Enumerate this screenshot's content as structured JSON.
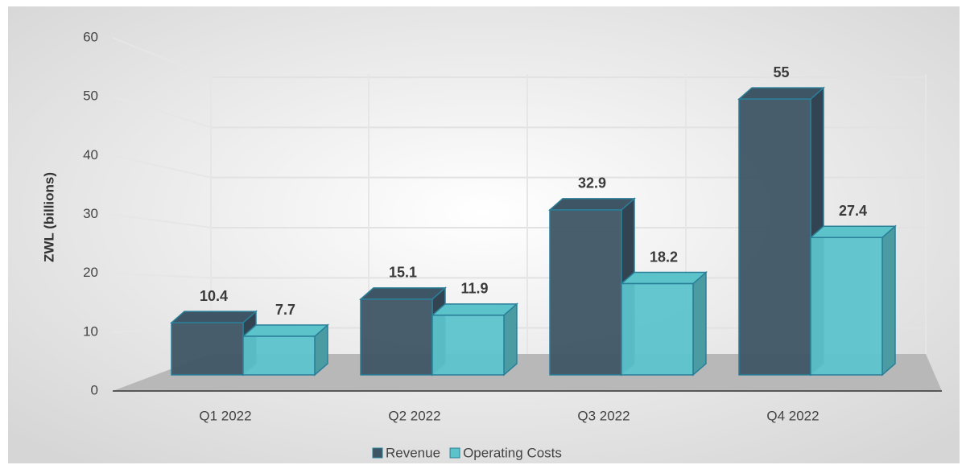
{
  "chart_data": {
    "type": "bar3d",
    "y_label": "ZWL (billions)",
    "categories": [
      "Q1 2022",
      "Q2 2022",
      "Q3 2022",
      "Q4 2022"
    ],
    "series": [
      {
        "name": "Revenue",
        "color": "#3e5565",
        "values": [
          10.4,
          15.1,
          32.9,
          55
        ]
      },
      {
        "name": "Operating Costs",
        "color": "#5cc3cb",
        "values": [
          7.7,
          11.9,
          18.2,
          27.4
        ]
      }
    ],
    "ylim": [
      0,
      60
    ],
    "yticks": [
      0,
      10,
      20,
      30,
      40,
      50,
      60
    ],
    "grid": true,
    "legend": "bottom"
  }
}
